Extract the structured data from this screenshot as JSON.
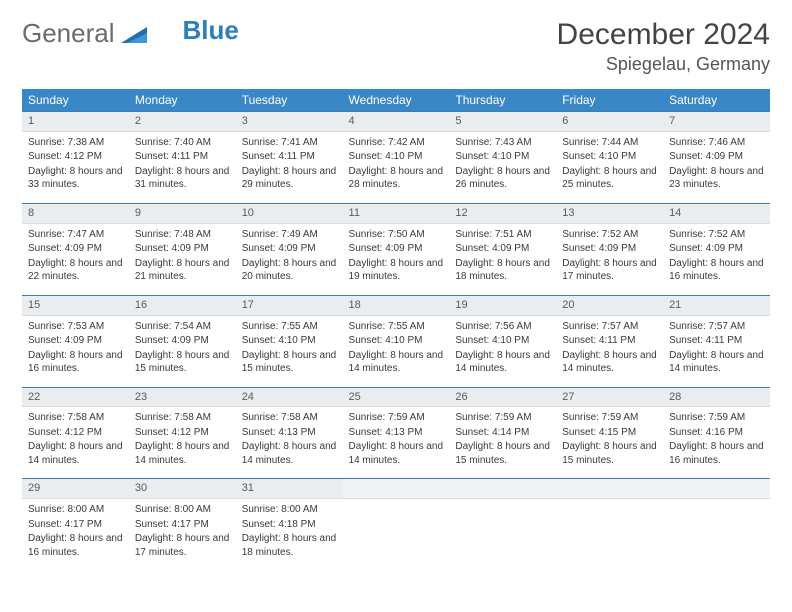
{
  "logo": {
    "word1": "General",
    "word2": "Blue"
  },
  "title": "December 2024",
  "location": "Spiegelau, Germany",
  "colors": {
    "header_bg": "#3a87c8",
    "header_text": "#ffffff",
    "daynum_bg": "#e9edf0",
    "row_border": "#3a7fb0",
    "logo_gray": "#6b6b6b",
    "logo_blue": "#2a7fbf"
  },
  "day_headers": [
    "Sunday",
    "Monday",
    "Tuesday",
    "Wednesday",
    "Thursday",
    "Friday",
    "Saturday"
  ],
  "weeks": [
    [
      {
        "n": "1",
        "sr": "7:38 AM",
        "ss": "4:12 PM",
        "dl": "8 hours and 33 minutes."
      },
      {
        "n": "2",
        "sr": "7:40 AM",
        "ss": "4:11 PM",
        "dl": "8 hours and 31 minutes."
      },
      {
        "n": "3",
        "sr": "7:41 AM",
        "ss": "4:11 PM",
        "dl": "8 hours and 29 minutes."
      },
      {
        "n": "4",
        "sr": "7:42 AM",
        "ss": "4:10 PM",
        "dl": "8 hours and 28 minutes."
      },
      {
        "n": "5",
        "sr": "7:43 AM",
        "ss": "4:10 PM",
        "dl": "8 hours and 26 minutes."
      },
      {
        "n": "6",
        "sr": "7:44 AM",
        "ss": "4:10 PM",
        "dl": "8 hours and 25 minutes."
      },
      {
        "n": "7",
        "sr": "7:46 AM",
        "ss": "4:09 PM",
        "dl": "8 hours and 23 minutes."
      }
    ],
    [
      {
        "n": "8",
        "sr": "7:47 AM",
        "ss": "4:09 PM",
        "dl": "8 hours and 22 minutes."
      },
      {
        "n": "9",
        "sr": "7:48 AM",
        "ss": "4:09 PM",
        "dl": "8 hours and 21 minutes."
      },
      {
        "n": "10",
        "sr": "7:49 AM",
        "ss": "4:09 PM",
        "dl": "8 hours and 20 minutes."
      },
      {
        "n": "11",
        "sr": "7:50 AM",
        "ss": "4:09 PM",
        "dl": "8 hours and 19 minutes."
      },
      {
        "n": "12",
        "sr": "7:51 AM",
        "ss": "4:09 PM",
        "dl": "8 hours and 18 minutes."
      },
      {
        "n": "13",
        "sr": "7:52 AM",
        "ss": "4:09 PM",
        "dl": "8 hours and 17 minutes."
      },
      {
        "n": "14",
        "sr": "7:52 AM",
        "ss": "4:09 PM",
        "dl": "8 hours and 16 minutes."
      }
    ],
    [
      {
        "n": "15",
        "sr": "7:53 AM",
        "ss": "4:09 PM",
        "dl": "8 hours and 16 minutes."
      },
      {
        "n": "16",
        "sr": "7:54 AM",
        "ss": "4:09 PM",
        "dl": "8 hours and 15 minutes."
      },
      {
        "n": "17",
        "sr": "7:55 AM",
        "ss": "4:10 PM",
        "dl": "8 hours and 15 minutes."
      },
      {
        "n": "18",
        "sr": "7:55 AM",
        "ss": "4:10 PM",
        "dl": "8 hours and 14 minutes."
      },
      {
        "n": "19",
        "sr": "7:56 AM",
        "ss": "4:10 PM",
        "dl": "8 hours and 14 minutes."
      },
      {
        "n": "20",
        "sr": "7:57 AM",
        "ss": "4:11 PM",
        "dl": "8 hours and 14 minutes."
      },
      {
        "n": "21",
        "sr": "7:57 AM",
        "ss": "4:11 PM",
        "dl": "8 hours and 14 minutes."
      }
    ],
    [
      {
        "n": "22",
        "sr": "7:58 AM",
        "ss": "4:12 PM",
        "dl": "8 hours and 14 minutes."
      },
      {
        "n": "23",
        "sr": "7:58 AM",
        "ss": "4:12 PM",
        "dl": "8 hours and 14 minutes."
      },
      {
        "n": "24",
        "sr": "7:58 AM",
        "ss": "4:13 PM",
        "dl": "8 hours and 14 minutes."
      },
      {
        "n": "25",
        "sr": "7:59 AM",
        "ss": "4:13 PM",
        "dl": "8 hours and 14 minutes."
      },
      {
        "n": "26",
        "sr": "7:59 AM",
        "ss": "4:14 PM",
        "dl": "8 hours and 15 minutes."
      },
      {
        "n": "27",
        "sr": "7:59 AM",
        "ss": "4:15 PM",
        "dl": "8 hours and 15 minutes."
      },
      {
        "n": "28",
        "sr": "7:59 AM",
        "ss": "4:16 PM",
        "dl": "8 hours and 16 minutes."
      }
    ],
    [
      {
        "n": "29",
        "sr": "8:00 AM",
        "ss": "4:17 PM",
        "dl": "8 hours and 16 minutes."
      },
      {
        "n": "30",
        "sr": "8:00 AM",
        "ss": "4:17 PM",
        "dl": "8 hours and 17 minutes."
      },
      {
        "n": "31",
        "sr": "8:00 AM",
        "ss": "4:18 PM",
        "dl": "8 hours and 18 minutes."
      },
      {
        "empty": true
      },
      {
        "empty": true
      },
      {
        "empty": true
      },
      {
        "empty": true
      }
    ]
  ],
  "labels": {
    "sunrise_prefix": "Sunrise: ",
    "sunset_prefix": "Sunset: ",
    "daylight_prefix": "Daylight: "
  }
}
